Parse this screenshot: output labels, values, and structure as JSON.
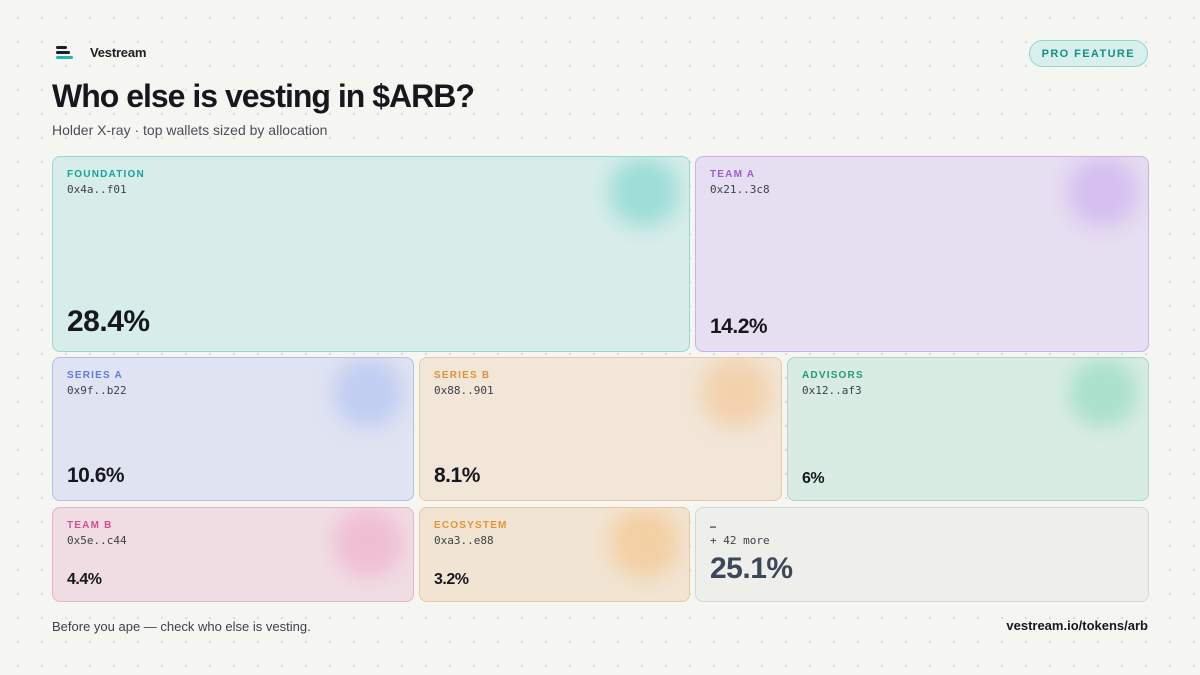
{
  "brand": {
    "name": "Vestream",
    "logo_icon": "stacked-bars-icon"
  },
  "badge": {
    "label": "PRO FEATURE"
  },
  "header": {
    "title": "Who else is vesting in $ARB?",
    "subtitle": "Holder X-ray · top wallets sized by allocation"
  },
  "holders": [
    {
      "label": "FOUNDATION",
      "address": "0x4a..f01",
      "percent": "28.4%",
      "share": 28.4,
      "color": "#17a39c"
    },
    {
      "label": "TEAM A",
      "address": "0x21..3c8",
      "percent": "14.2%",
      "share": 14.2,
      "color": "#9a5fd1"
    },
    {
      "label": "SERIES A",
      "address": "0x9f..b22",
      "percent": "10.6%",
      "share": 10.6,
      "color": "#5c7fd8"
    },
    {
      "label": "SERIES B",
      "address": "0x88..901",
      "percent": "8.1%",
      "share": 8.1,
      "color": "#e1913a"
    },
    {
      "label": "ADVISORS",
      "address": "0x12..af3",
      "percent": "6%",
      "share": 6,
      "color": "#239a78"
    },
    {
      "label": "TEAM B",
      "address": "0x5e..c44",
      "percent": "4.4%",
      "share": 4.4,
      "color": "#d4508a"
    },
    {
      "label": "ECOSYSTEM",
      "address": "0xa3..e88",
      "percent": "3.2%",
      "share": 3.2,
      "color": "#e49432"
    }
  ],
  "others": {
    "label": "…",
    "detail": "+ 42 more",
    "percent": "25.1%",
    "share": 25.1
  },
  "footer": {
    "note": "Before you ape — check who else is vesting.",
    "url": "vestream.io/tokens/arb"
  }
}
